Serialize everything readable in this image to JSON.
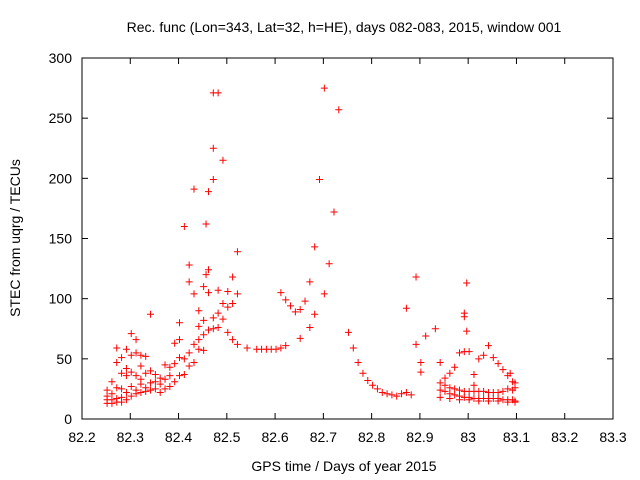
{
  "chart_data": {
    "type": "scatter",
    "title": "Rec. func (Lon=343, Lat=32, h=HE), days 082-083, 2015, window 001",
    "xlabel": "GPS time / Days of year 2015",
    "ylabel": "STEC from uqrg / TECUs",
    "xlim": [
      82.2,
      83.3
    ],
    "ylim": [
      0,
      300
    ],
    "xticks": [
      "82.2",
      "82.3",
      "82.4",
      "82.5",
      "82.6",
      "82.7",
      "82.8",
      "82.9",
      "83",
      "83.1",
      "83.2",
      "83.3"
    ],
    "yticks": [
      "0",
      "50",
      "100",
      "150",
      "200",
      "250",
      "300"
    ],
    "grid": false,
    "marker": "+",
    "marker_color": "#ff0000",
    "series": [
      {
        "name": "STEC",
        "points": [
          [
            82.252,
            24
          ],
          [
            82.252,
            19
          ],
          [
            82.252,
            16
          ],
          [
            82.252,
            13
          ],
          [
            82.262,
            31
          ],
          [
            82.262,
            21
          ],
          [
            82.262,
            16
          ],
          [
            82.262,
            13
          ],
          [
            82.272,
            59
          ],
          [
            82.272,
            47
          ],
          [
            82.272,
            26
          ],
          [
            82.272,
            17
          ],
          [
            82.272,
            14
          ],
          [
            82.282,
            51
          ],
          [
            82.282,
            38
          ],
          [
            82.282,
            25
          ],
          [
            82.282,
            18
          ],
          [
            82.282,
            14
          ],
          [
            82.292,
            58
          ],
          [
            82.292,
            42
          ],
          [
            82.292,
            36
          ],
          [
            82.292,
            22
          ],
          [
            82.292,
            16
          ],
          [
            82.302,
            71
          ],
          [
            82.302,
            53
          ],
          [
            82.302,
            39
          ],
          [
            82.302,
            27
          ],
          [
            82.302,
            19
          ],
          [
            82.312,
            66
          ],
          [
            82.312,
            55
          ],
          [
            82.312,
            36
          ],
          [
            82.312,
            24
          ],
          [
            82.312,
            21
          ],
          [
            82.322,
            53
          ],
          [
            82.322,
            44
          ],
          [
            82.322,
            33
          ],
          [
            82.322,
            29
          ],
          [
            82.322,
            22
          ],
          [
            82.332,
            52
          ],
          [
            82.332,
            38
          ],
          [
            82.332,
            26
          ],
          [
            82.332,
            23
          ],
          [
            82.342,
            87
          ],
          [
            82.342,
            40
          ],
          [
            82.342,
            30
          ],
          [
            82.342,
            24
          ],
          [
            82.352,
            37
          ],
          [
            82.352,
            31
          ],
          [
            82.352,
            25
          ],
          [
            82.362,
            34
          ],
          [
            82.362,
            29
          ],
          [
            82.362,
            22
          ],
          [
            82.372,
            45
          ],
          [
            82.372,
            33
          ],
          [
            82.372,
            25
          ],
          [
            82.382,
            43
          ],
          [
            82.382,
            36
          ],
          [
            82.382,
            27
          ],
          [
            82.392,
            63
          ],
          [
            82.392,
            46
          ],
          [
            82.392,
            31
          ],
          [
            82.402,
            80
          ],
          [
            82.402,
            66
          ],
          [
            82.402,
            51
          ],
          [
            82.402,
            36
          ],
          [
            82.412,
            160
          ],
          [
            82.412,
            50
          ],
          [
            82.412,
            37
          ],
          [
            82.422,
            128
          ],
          [
            82.422,
            114
          ],
          [
            82.422,
            55
          ],
          [
            82.422,
            44
          ],
          [
            82.432,
            191
          ],
          [
            82.432,
            104
          ],
          [
            82.432,
            62
          ],
          [
            82.432,
            47
          ],
          [
            82.442,
            90
          ],
          [
            82.442,
            77
          ],
          [
            82.442,
            66
          ],
          [
            82.442,
            58
          ],
          [
            82.452,
            110
          ],
          [
            82.452,
            82
          ],
          [
            82.452,
            70
          ],
          [
            82.452,
            57
          ],
          [
            82.457,
            162
          ],
          [
            82.457,
            120
          ],
          [
            82.462,
            189
          ],
          [
            82.462,
            124
          ],
          [
            82.462,
            105
          ],
          [
            82.462,
            74
          ],
          [
            82.472,
            271
          ],
          [
            82.472,
            225
          ],
          [
            82.472,
            199
          ],
          [
            82.472,
            84
          ],
          [
            82.472,
            75
          ],
          [
            82.482,
            271
          ],
          [
            82.482,
            107
          ],
          [
            82.482,
            88
          ],
          [
            82.482,
            76
          ],
          [
            82.492,
            215
          ],
          [
            82.492,
            96
          ],
          [
            82.492,
            83
          ],
          [
            82.502,
            106
          ],
          [
            82.502,
            93
          ],
          [
            82.502,
            72
          ],
          [
            82.512,
            118
          ],
          [
            82.512,
            96
          ],
          [
            82.512,
            66
          ],
          [
            82.522,
            139
          ],
          [
            82.522,
            104
          ],
          [
            82.522,
            62
          ],
          [
            82.542,
            59
          ],
          [
            82.562,
            58
          ],
          [
            82.572,
            58
          ],
          [
            82.582,
            58
          ],
          [
            82.592,
            58
          ],
          [
            82.602,
            58
          ],
          [
            82.612,
            105
          ],
          [
            82.612,
            59
          ],
          [
            82.622,
            99
          ],
          [
            82.622,
            61
          ],
          [
            82.632,
            94
          ],
          [
            82.642,
            89
          ],
          [
            82.652,
            91
          ],
          [
            82.652,
            67
          ],
          [
            82.662,
            98
          ],
          [
            82.672,
            114
          ],
          [
            82.672,
            76
          ],
          [
            82.682,
            143
          ],
          [
            82.682,
            87
          ],
          [
            82.692,
            199
          ],
          [
            82.702,
            275
          ],
          [
            82.702,
            104
          ],
          [
            82.712,
            129
          ],
          [
            82.722,
            172
          ],
          [
            82.732,
            257
          ],
          [
            82.752,
            72
          ],
          [
            82.762,
            59
          ],
          [
            82.772,
            47
          ],
          [
            82.782,
            38
          ],
          [
            82.792,
            32
          ],
          [
            82.802,
            28
          ],
          [
            82.812,
            25
          ],
          [
            82.822,
            22
          ],
          [
            82.832,
            21
          ],
          [
            82.842,
            20
          ],
          [
            82.852,
            19
          ],
          [
            82.862,
            21
          ],
          [
            82.872,
            22
          ],
          [
            82.872,
            92
          ],
          [
            82.882,
            20
          ],
          [
            82.892,
            118
          ],
          [
            82.892,
            62
          ],
          [
            82.902,
            47
          ],
          [
            82.902,
            39
          ],
          [
            82.912,
            69
          ],
          [
            82.932,
            75
          ],
          [
            82.942,
            47
          ],
          [
            82.952,
            34
          ],
          [
            82.962,
            38
          ],
          [
            82.972,
            43
          ],
          [
            82.982,
            55
          ],
          [
            82.992,
            88
          ],
          [
            82.992,
            85
          ],
          [
            82.992,
            56
          ],
          [
            82.997,
            113
          ],
          [
            82.997,
            73
          ],
          [
            83.002,
            56
          ],
          [
            83.012,
            37
          ],
          [
            83.012,
            28
          ],
          [
            83.022,
            50
          ],
          [
            83.032,
            53
          ],
          [
            83.042,
            61
          ],
          [
            83.052,
            51
          ],
          [
            83.062,
            46
          ],
          [
            83.072,
            41
          ],
          [
            83.082,
            36
          ],
          [
            83.087,
            38
          ],
          [
            83.092,
            31
          ],
          [
            83.097,
            30
          ],
          [
            82.942,
            30
          ],
          [
            82.952,
            28
          ],
          [
            82.962,
            26
          ],
          [
            82.972,
            25
          ],
          [
            82.982,
            24
          ],
          [
            82.992,
            23
          ],
          [
            83.002,
            23
          ],
          [
            83.012,
            23
          ],
          [
            83.022,
            23
          ],
          [
            83.032,
            23
          ],
          [
            83.042,
            22
          ],
          [
            83.052,
            22
          ],
          [
            83.062,
            22
          ],
          [
            83.072,
            23
          ],
          [
            83.082,
            25
          ],
          [
            83.092,
            24
          ],
          [
            83.097,
            26
          ],
          [
            82.942,
            24
          ],
          [
            82.952,
            23
          ],
          [
            82.962,
            21
          ],
          [
            82.972,
            20
          ],
          [
            82.982,
            19
          ],
          [
            82.992,
            18
          ],
          [
            83.002,
            18
          ],
          [
            83.012,
            17
          ],
          [
            83.022,
            17
          ],
          [
            83.032,
            17
          ],
          [
            83.042,
            17
          ],
          [
            83.052,
            17
          ],
          [
            83.062,
            17
          ],
          [
            83.072,
            16
          ],
          [
            83.082,
            16
          ],
          [
            83.092,
            16
          ],
          [
            83.097,
            15
          ],
          [
            82.942,
            18
          ],
          [
            82.962,
            17
          ],
          [
            82.982,
            16
          ],
          [
            83.002,
            16
          ],
          [
            83.022,
            15
          ],
          [
            83.042,
            15
          ],
          [
            83.062,
            15
          ],
          [
            83.082,
            14
          ],
          [
            83.097,
            14
          ]
        ]
      }
    ]
  }
}
